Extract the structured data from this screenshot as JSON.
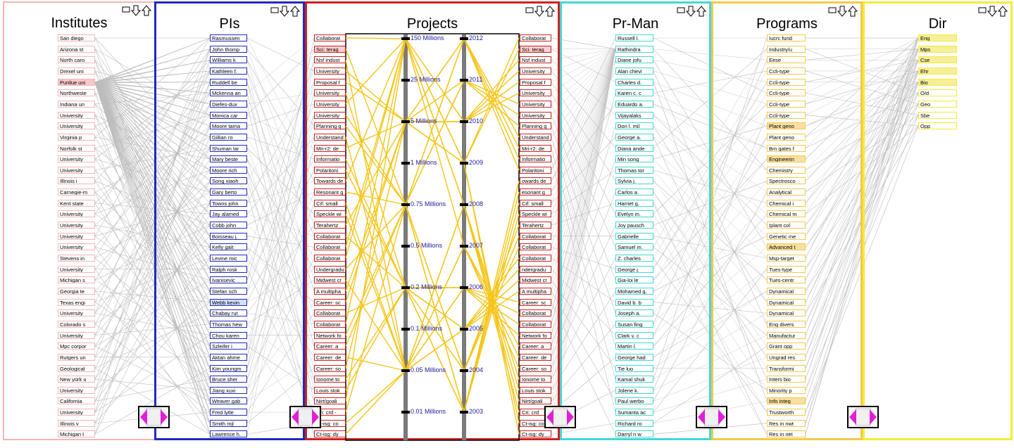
{
  "app": {
    "kind": "parallel-sets-visualization"
  },
  "colors": {
    "institutes": "#f4b5b5",
    "pis": "#1f2bbd",
    "projects": "#d02020",
    "prman": "#44d6d6",
    "programs": "#f2c94c",
    "dir": "#f6ea3a",
    "link": "#bdbdbd",
    "gold": "#f5c518"
  },
  "panels": [
    {
      "id": "institutes",
      "title": "Institutes",
      "items": [
        "San diego",
        "Arizona st",
        "North caro",
        "Drexel uni",
        "Purdue uni",
        "Northweste",
        "Indiana un",
        "University",
        "University",
        "Virginia p",
        "Norfolk st",
        "University",
        "University",
        "Illinois i",
        "Carnegie-m",
        "Kent state",
        "University",
        "University",
        "University",
        "University",
        "Stevens in",
        "University",
        "Michigan s",
        "Georgia te",
        "Texas engi",
        "University",
        "Colorado s",
        "University",
        "Mpc corpor",
        "Rutgers un",
        "Geological",
        "New york u",
        "University",
        "California",
        "University",
        "Illinois v",
        "Michigan t"
      ]
    },
    {
      "id": "pis",
      "title": "PIs",
      "items": [
        "Rasmussen",
        "John thomp",
        "Williams k",
        "Kathleen f.",
        "Ruddell be",
        "Mckenna an",
        "Diefes-dux",
        "Monica car",
        "Moore tama",
        "Gillian ro",
        "Shuman lar",
        "Mary beste",
        "Moore rich",
        "Song xiaoh",
        "Gary berto",
        "Towns john",
        "Jay alamed",
        "Cobb john",
        "Boisseau j.",
        "Kelly gait",
        "Levine mic",
        "Ralph rosk",
        "Ivanisevic",
        "Stefan sch",
        "Webb kevin",
        "Chabay rut",
        "Thomas hew",
        "Chou karen",
        "Szleifer i",
        "Aktan ahme",
        "Kim youngm",
        "Bruce sher",
        "Jiang xuxi",
        "Weaver gab",
        "Fred lytle",
        "Smith mjl",
        "Lawrence h."
      ]
    },
    {
      "id": "projects",
      "title": "Projects",
      "left_items": [
        "Collaborat",
        "Sci: terag",
        "Nsf indust",
        "University",
        "Proposal f",
        "University",
        "University",
        "University",
        "Planning g",
        "Understand",
        "Mri-r2: de",
        "Informatio",
        "Polaritoni",
        "Towards de",
        "Resonant g",
        "Cif: small",
        "Speckle wi",
        "Terahertz",
        "Collaborat",
        "Collaborat",
        "Collaborat",
        "Undergradu",
        "Midwest cr",
        "A multipha",
        "Career: sc",
        "Collaborat",
        "Collaborat",
        "Network fo",
        "Career: a",
        "Career: de",
        "Career: so",
        "Ionome to",
        "Louis stok",
        "Nirt/goali",
        "Cri: crd -",
        "Ct-isg: co",
        "Ct-isg: dy"
      ],
      "right_items": [
        "Collaborat",
        "Sci: terag",
        "Nsf indust",
        "University",
        "Proposal f",
        "University",
        "University",
        "University",
        "Planning g",
        "Understand",
        "Mri-r2: de",
        "Informatio",
        "Polaritoni",
        "owards de",
        "esonant g",
        "Cif: small",
        "Speckle wi",
        "Terahertz",
        "Collaborat",
        "Collaborat",
        "Collaborat",
        "ndergradu",
        "Midwest cr",
        "A multipha",
        "Career: sc",
        "Collaborat",
        "Collaborat",
        "Network fo",
        "Career: a",
        "Career: de",
        "Career: so",
        "Ionome to",
        "Louis stok",
        "Nirt/goali",
        "Cri: crd",
        "Ct-isg: co",
        "Ct-isg: dy"
      ],
      "amount_ticks": [
        "150 Millions",
        "25 Millions",
        "5 Millions",
        "1 Millions",
        "0.75 Millions",
        "0.5 Millions",
        "0.2 Millions",
        "0.1 Millions",
        "0.05 Millions",
        "0.01 Millions"
      ],
      "year_ticks": [
        "2012",
        "2011",
        "2010",
        "2009",
        "2008",
        "2007",
        "2006",
        "2005",
        "2004",
        "2003"
      ]
    },
    {
      "id": "prman",
      "title": "Pr-Man",
      "items": [
        "Russell l.",
        "Rathindra",
        "Diane jofu",
        "Alan chevi",
        "Charles d.",
        "Karen c. c",
        "Eduardo a.",
        "Vijayalaks",
        "Don l. mil",
        "George a.",
        "Diana ande",
        "Min song",
        "Thomas tor",
        "Sylvia j.",
        "Carlos a.",
        "Harriet g.",
        "Evelyn m.",
        "Joy pausch",
        "Gabrielle",
        "Samuel m.",
        "Z. charles",
        "George j.",
        "Gia-loi le",
        "Mohamed g.",
        "David b. b",
        "Joseph a.",
        "Susan fing",
        "Clark v. c",
        "Martin l.",
        "George had",
        "Tie luo",
        "Kamal shuk",
        "Jolene k.",
        "Paul werbo",
        "Sumanta ac",
        "Richard ro",
        "Darryl n w"
      ]
    },
    {
      "id": "programs",
      "title": "Programs",
      "items": [
        "Iucrc fund",
        "Industry/u",
        "Eese",
        "Ccli-type",
        "Ccli-type",
        "Ccli-type",
        "Ccli-type",
        "Ccli-type",
        "Plant geno",
        "Plant geno",
        "Bm gates f",
        "Engineerin",
        "Chemistry",
        "Spectrosco",
        "Analytical",
        "Chemical i",
        "Chemical m",
        "Iplant col",
        "Genetic me",
        "Advanced t",
        "Msp-target",
        "Tues-type",
        "Tues-centr",
        "Dynamical",
        "Dynamical",
        "Dynamical",
        "Eng divers",
        "Manufactur",
        "Grant opp",
        "Ungrad res",
        "Transformi",
        "Inters bio",
        "Minority p",
        "Info integ",
        "Trustworth",
        "Res in nwt",
        "Res in net"
      ]
    },
    {
      "id": "dir",
      "title": "Dir",
      "items": [
        "Eng",
        "Mps",
        "Cse",
        "Ehr",
        "Bio",
        "O/d",
        "Geo",
        "Sbe",
        "Opp"
      ]
    }
  ]
}
